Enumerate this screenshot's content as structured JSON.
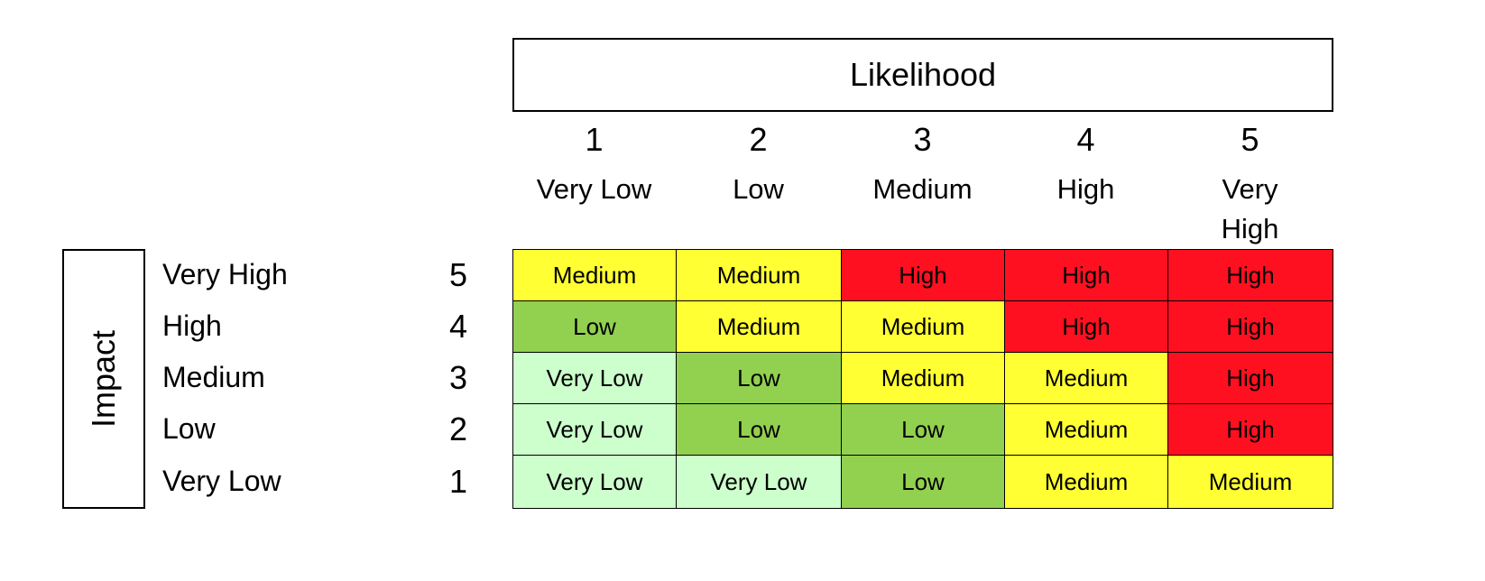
{
  "title": "Likelihood",
  "side_title": "Impact",
  "columns": [
    {
      "number": 1,
      "label": "Very Low"
    },
    {
      "number": 2,
      "label": "Low"
    },
    {
      "number": 3,
      "label": "Medium"
    },
    {
      "number": 4,
      "label": "High"
    },
    {
      "number": 5,
      "label": "Very High"
    }
  ],
  "rows": [
    {
      "label": "Very High",
      "number": 5,
      "cells": [
        "Medium",
        "Medium",
        "High",
        "High",
        "High"
      ]
    },
    {
      "label": "High",
      "number": 4,
      "cells": [
        "Low",
        "Medium",
        "Medium",
        "High",
        "High"
      ]
    },
    {
      "label": "Medium",
      "number": 3,
      "cells": [
        "Very Low",
        "Low",
        "Medium",
        "Medium",
        "High"
      ]
    },
    {
      "label": "Low",
      "number": 2,
      "cells": [
        "Very Low",
        "Low",
        "Low",
        "Medium",
        "High"
      ]
    },
    {
      "label": "Very Low",
      "number": 1,
      "cells": [
        "Very Low",
        "Very Low",
        "Low",
        "Medium",
        "Medium"
      ]
    }
  ],
  "rating_colors": {
    "Very Low": "#ccffcc",
    "Low": "#92d050",
    "Medium": "#ffff33",
    "High": "#ff1020"
  }
}
